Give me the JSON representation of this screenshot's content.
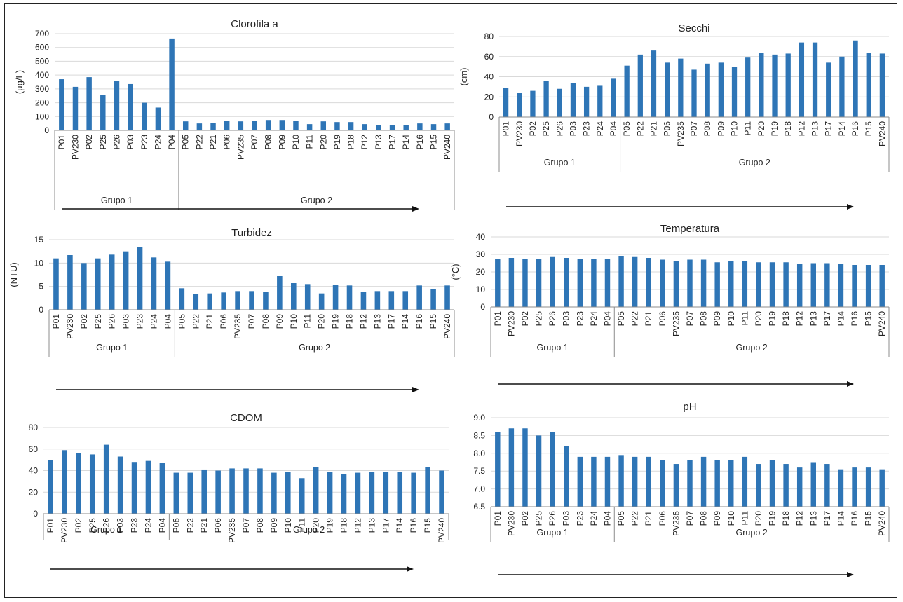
{
  "colors": {
    "bar": "#2e75b6",
    "grid": "#d9d9d9",
    "axis": "#8c8c8c",
    "text": "#222222"
  },
  "groups": [
    "Grupo 1",
    "Grupo 2"
  ],
  "chart_data": [
    {
      "type": "bar",
      "title": "Clorofila a",
      "ylabel": "(µg/L)",
      "ylim": [
        0,
        700
      ],
      "ytick_step": 100,
      "yticks": [
        "0",
        "100",
        "200",
        "300",
        "400",
        "500",
        "600",
        "700"
      ],
      "grid": true,
      "categories": [
        "P01",
        "PV230",
        "P02",
        "P25",
        "P26",
        "P03",
        "P23",
        "P24",
        "P04",
        "P05",
        "P22",
        "P21",
        "P06",
        "PV235",
        "P07",
        "P08",
        "P09",
        "P10",
        "P11",
        "P20",
        "P19",
        "P18",
        "P12",
        "P13",
        "P17",
        "P14",
        "P16",
        "P15",
        "PV240"
      ],
      "values": [
        370,
        315,
        385,
        255,
        355,
        335,
        200,
        165,
        665,
        65,
        50,
        55,
        70,
        65,
        70,
        75,
        75,
        70,
        45,
        65,
        60,
        60,
        45,
        40,
        40,
        40,
        50,
        45,
        50
      ],
      "group_split": 9
    },
    {
      "type": "bar",
      "title": "Secchi",
      "ylabel": "(cm)",
      "ylim": [
        0,
        80
      ],
      "ytick_step": 20,
      "yticks": [
        "0",
        "20",
        "40",
        "60",
        "80"
      ],
      "grid": true,
      "categories": [
        "P01",
        "PV230",
        "P02",
        "P25",
        "P26",
        "P03",
        "P23",
        "P24",
        "P04",
        "P05",
        "P22",
        "P21",
        "P06",
        "PV235",
        "P07",
        "P08",
        "P09",
        "P10",
        "P11",
        "P20",
        "P19",
        "P18",
        "P12",
        "P13",
        "P17",
        "P14",
        "P16",
        "P15",
        "PV240"
      ],
      "values": [
        29,
        24,
        26,
        36,
        28,
        34,
        30,
        31,
        38,
        51,
        62,
        66,
        54,
        58,
        47,
        53,
        54,
        50,
        59,
        64,
        62,
        63,
        74,
        74,
        54,
        60,
        76,
        64,
        63
      ],
      "group_split": 9
    },
    {
      "type": "bar",
      "title": "Turbidez",
      "ylabel": "(NTU)",
      "ylim": [
        0,
        15
      ],
      "ytick_step": 5,
      "yticks": [
        "0",
        "5",
        "10",
        "15"
      ],
      "grid": true,
      "categories": [
        "P01",
        "PV230",
        "P02",
        "P25",
        "P26",
        "P03",
        "P23",
        "P24",
        "P04",
        "P05",
        "P22",
        "P21",
        "P06",
        "PV235",
        "P07",
        "P08",
        "P09",
        "P10",
        "P11",
        "P20",
        "P19",
        "P18",
        "P12",
        "P13",
        "P17",
        "P14",
        "P16",
        "P15",
        "PV240"
      ],
      "values": [
        11,
        11.7,
        10,
        11,
        11.8,
        12.5,
        13.5,
        11.2,
        10.3,
        4.6,
        3.3,
        3.5,
        3.7,
        4,
        4,
        3.8,
        7.2,
        5.7,
        5.5,
        3.5,
        5.3,
        5.2,
        3.8,
        4,
        4,
        4,
        5.2,
        4.5,
        5.2
      ],
      "group_split": 9
    },
    {
      "type": "bar",
      "title": "Temperatura",
      "ylabel": "(°C)",
      "ylim": [
        0,
        40
      ],
      "ytick_step": 10,
      "yticks": [
        "0",
        "10",
        "20",
        "30",
        "40"
      ],
      "grid": true,
      "categories": [
        "P01",
        "PV230",
        "P02",
        "P25",
        "P26",
        "P03",
        "P23",
        "P24",
        "P04",
        "P05",
        "P22",
        "P21",
        "P06",
        "PV235",
        "P07",
        "P08",
        "P09",
        "P10",
        "P11",
        "P20",
        "P19",
        "P18",
        "P12",
        "P13",
        "P17",
        "P14",
        "P16",
        "P15",
        "PV240"
      ],
      "values": [
        27.5,
        28,
        27.5,
        27.5,
        28.5,
        28,
        27.5,
        27.5,
        27.5,
        29,
        28.5,
        28,
        27,
        26,
        27,
        27,
        25.5,
        26,
        26,
        25.5,
        25.5,
        25.5,
        24.5,
        25,
        25,
        24.5,
        24,
        24,
        24
      ],
      "group_split": 9
    },
    {
      "type": "bar",
      "title": "CDOM",
      "ylabel": "",
      "ylim": [
        0,
        80
      ],
      "ytick_step": 20,
      "yticks": [
        "0",
        "20",
        "40",
        "60",
        "80"
      ],
      "grid": true,
      "categories": [
        "P01",
        "PV230",
        "P02",
        "P25",
        "P26",
        "P03",
        "P23",
        "P24",
        "P04",
        "P05",
        "P22",
        "P21",
        "P06",
        "PV235",
        "P07",
        "P08",
        "P09",
        "P10",
        "P11",
        "P20",
        "P19",
        "P18",
        "P12",
        "P13",
        "P17",
        "P14",
        "P16",
        "P15",
        "PV240"
      ],
      "values": [
        50,
        59,
        56,
        55,
        64,
        53,
        48,
        49,
        47,
        38,
        38,
        41,
        40,
        42,
        42,
        42,
        38,
        39,
        33,
        43,
        39,
        37,
        38,
        39,
        39,
        39,
        38,
        43,
        40
      ],
      "group_split": 9
    },
    {
      "type": "bar",
      "title": "pH",
      "ylabel": "",
      "ylim": [
        6.5,
        9.0
      ],
      "ytick_step": 0.5,
      "yticks": [
        "6.5",
        "7.0",
        "7.5",
        "8.0",
        "8.5",
        "9.0"
      ],
      "grid": true,
      "categories": [
        "P01",
        "PV230",
        "P02",
        "P25",
        "P26",
        "P03",
        "P23",
        "P24",
        "P04",
        "P05",
        "P22",
        "P21",
        "P06",
        "PV235",
        "P07",
        "P08",
        "P09",
        "P10",
        "P11",
        "P20",
        "P19",
        "P18",
        "P12",
        "P13",
        "P17",
        "P14",
        "P16",
        "P15",
        "PV240"
      ],
      "values": [
        8.6,
        8.7,
        8.7,
        8.5,
        8.6,
        8.2,
        7.9,
        7.9,
        7.9,
        7.95,
        7.9,
        7.9,
        7.8,
        7.7,
        7.8,
        7.9,
        7.8,
        7.8,
        7.9,
        7.7,
        7.8,
        7.7,
        7.6,
        7.75,
        7.7,
        7.55,
        7.6,
        7.6,
        7.55
      ],
      "group_split": 9
    }
  ]
}
